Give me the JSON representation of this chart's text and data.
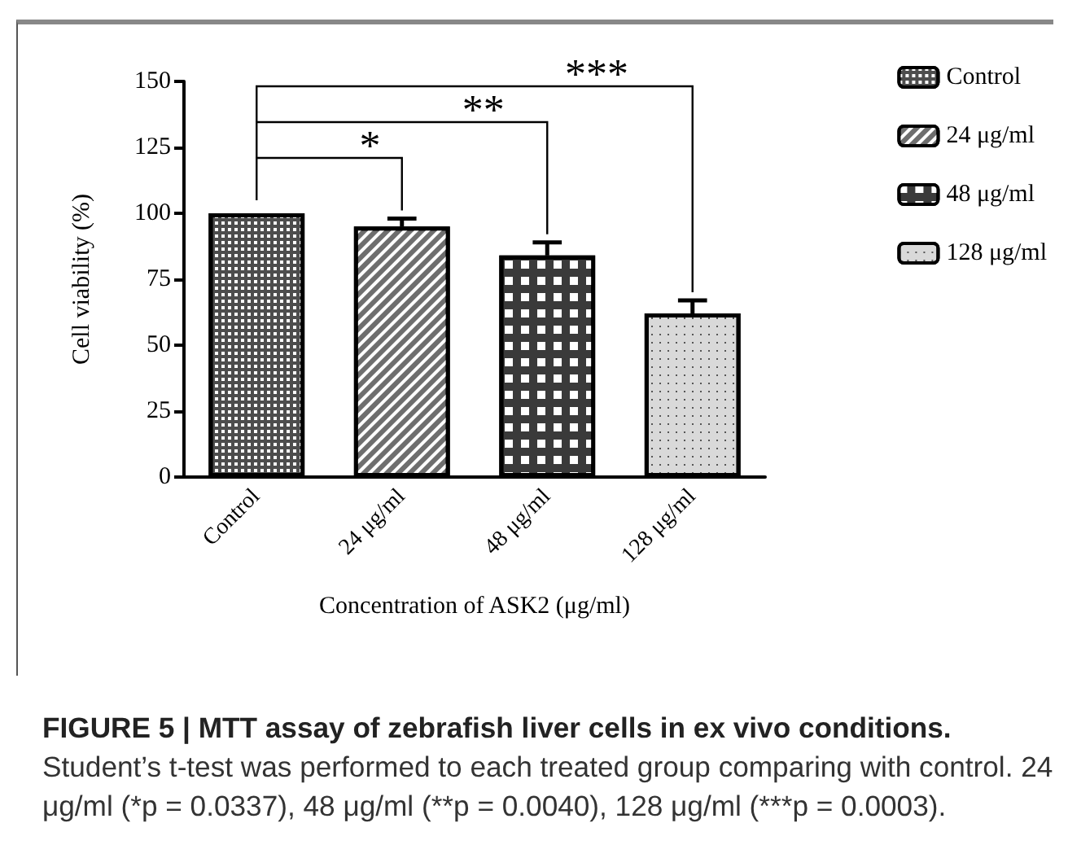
{
  "chart_data": {
    "type": "bar",
    "title": "FIGURE 5 | MTT assay of zebrafish liver cells in ex vivo conditions.",
    "subtitle": "Student’s t-test was performed to each treated group comparing with control. 24 μg/ml (*p = 0.0337), 48 μg/ml (**p = 0.0040), 128 μg/ml (***p = 0.0003).",
    "xlabel": "Concentration of ASK2 (μg/ml)",
    "ylabel": "Cell viability (%)",
    "categories": [
      "Control",
      "24 μg/ml",
      "48 μg/ml",
      "128 μg/ml"
    ],
    "series": [
      {
        "name": "Control",
        "color": "#4d4d4d",
        "values": [
          100,
          null,
          null,
          null
        ]
      },
      {
        "name": "24 μg/ml",
        "color": "#6e6e6e",
        "values": [
          null,
          95,
          null,
          null
        ],
        "errors": [
          null,
          [
            95,
            98
          ],
          null,
          null
        ]
      },
      {
        "name": "48 μg/ml",
        "color": "#3a3a3a",
        "values": [
          null,
          null,
          84,
          null
        ],
        "errors": [
          null,
          null,
          [
            84,
            89
          ],
          null
        ]
      },
      {
        "name": "128 μg/ml",
        "color": "#d9d9d9",
        "values": [
          null,
          null,
          null,
          62
        ],
        "errors": [
          null,
          null,
          null,
          [
            62,
            67
          ]
        ]
      }
    ],
    "ylim": [
      0,
      150
    ],
    "yticks": [
      0,
      25,
      50,
      75,
      100,
      125,
      150
    ],
    "grid": false,
    "legend": "right",
    "annotations": [
      "*",
      "**",
      "***"
    ]
  }
}
